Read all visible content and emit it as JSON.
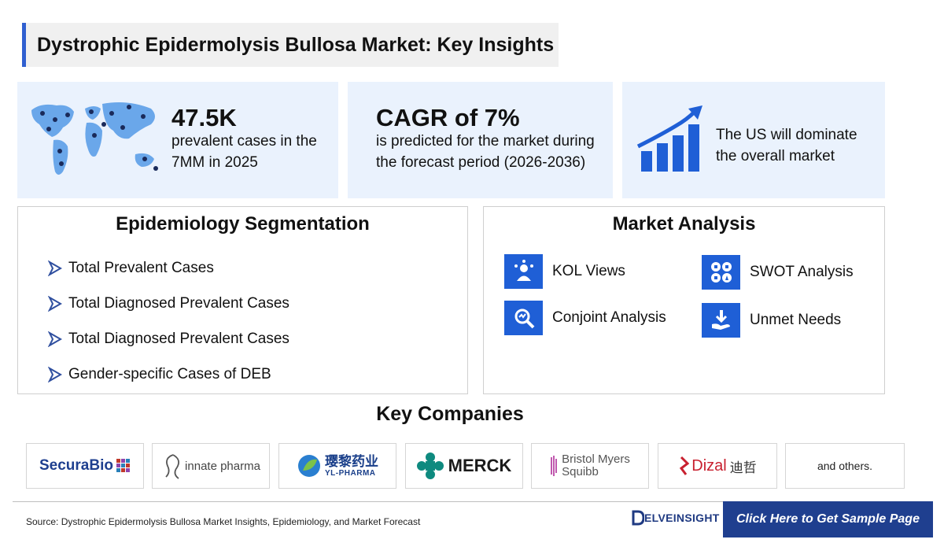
{
  "header": {
    "title": "Dystrophic Epidermolysis Bullosa Market: Key Insights"
  },
  "stats": [
    {
      "value": "47.5K",
      "text": "prevalent cases in the 7MM in 2025",
      "icon": "world-map-icon"
    },
    {
      "value": "CAGR of 7%",
      "text": "is predicted for the market during the forecast period (2026-2036)"
    },
    {
      "text": "The US will dominate the overall market",
      "icon": "growth-chart-icon"
    }
  ],
  "epidemiology": {
    "title": "Epidemiology Segmentation",
    "items": [
      "Total Prevalent Cases",
      "Total Diagnosed Prevalent Cases",
      "Total Diagnosed Prevalent Cases",
      "Gender-specific Cases of DEB"
    ]
  },
  "market_analysis": {
    "title": "Market Analysis",
    "items": [
      {
        "label": "KOL Views",
        "icon": "kol-icon"
      },
      {
        "label": "SWOT Analysis",
        "icon": "swot-icon"
      },
      {
        "label": "Conjoint Analysis",
        "icon": "conjoint-icon"
      },
      {
        "label": "Unmet Needs",
        "icon": "unmet-needs-icon"
      }
    ]
  },
  "companies": {
    "title": "Key Companies",
    "logos": {
      "securabio": "SecuraBio",
      "innate": "innate pharma",
      "yl_cn": "璎黎药业",
      "yl_en": "YL-PHARMA",
      "merck": "MERCK",
      "bms_1": "Bristol Myers",
      "bms_2": "Squibb",
      "dizal": "Dizal",
      "dizal_cn": "迪哲"
    },
    "others": "and others."
  },
  "footer": {
    "source": "Source: Dystrophic Epidermolysis Bullosa Market Insights, Epidemiology, and Market Forecast",
    "brand": "ELVEINSIGHT",
    "cta": "Click Here to Get Sample Page"
  },
  "colors": {
    "accent": "#1f5fd6",
    "panel_bg": "#eaf2fd",
    "cta_bg": "#1f3f8f"
  }
}
